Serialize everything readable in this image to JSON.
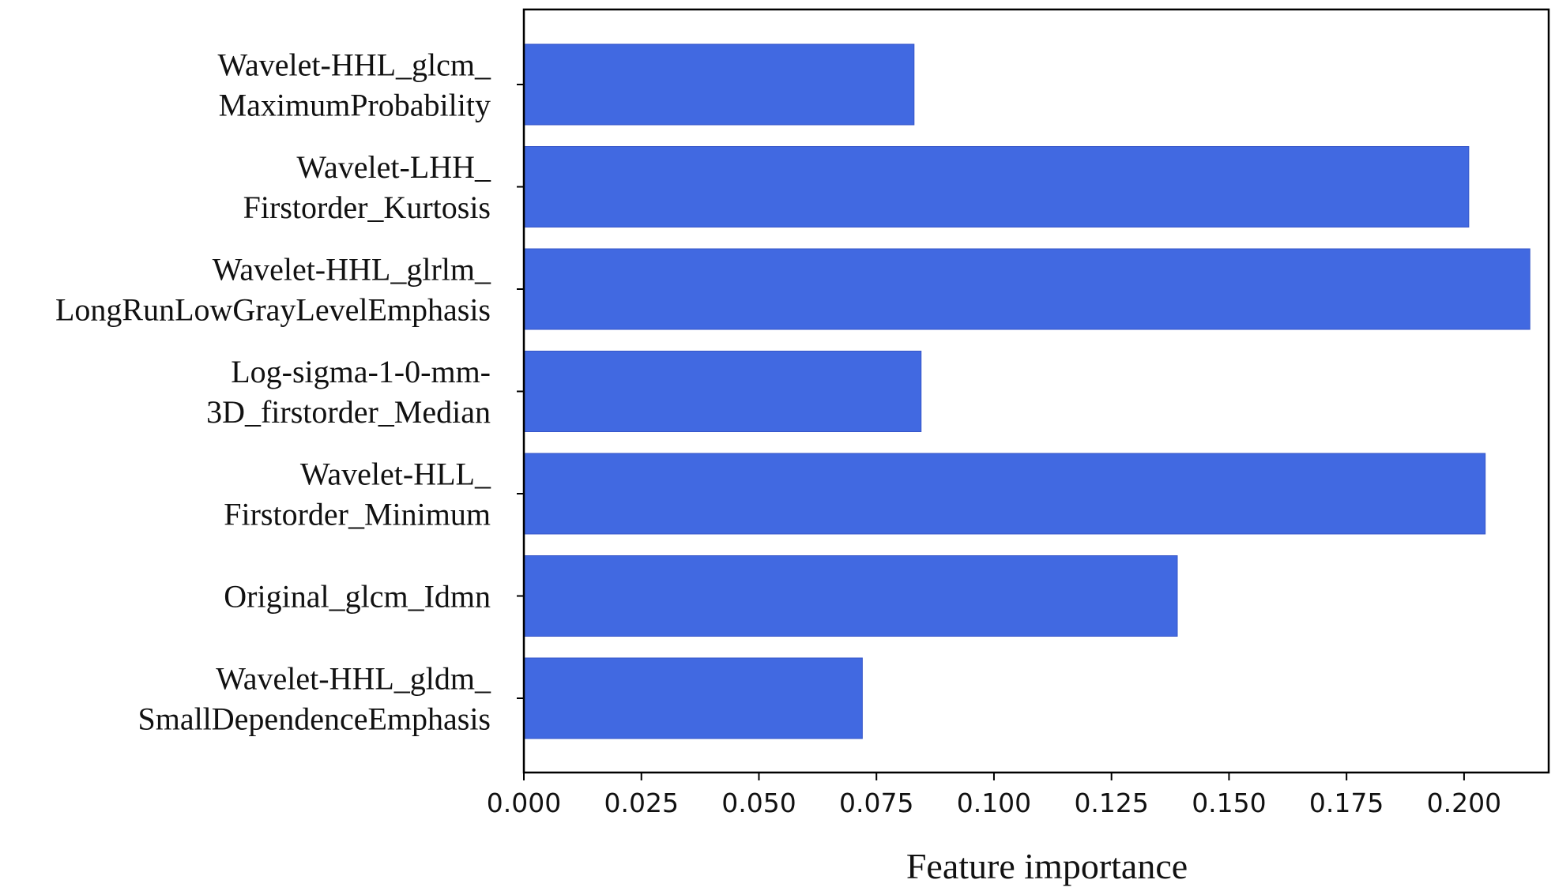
{
  "chart_data": {
    "type": "bar",
    "orientation": "horizontal",
    "categories": [
      [
        "Wavelet-HHL_glcm_",
        "MaximumProbability"
      ],
      [
        "Wavelet-LHH_",
        "Firstorder_Kurtosis"
      ],
      [
        "Wavelet-HHL_glrlm_",
        "LongRunLowGrayLevelEmphasis"
      ],
      [
        "Log-sigma-1-0-mm-",
        "3D_firstorder_Median"
      ],
      [
        "Wavelet-HLL_",
        "Firstorder_Minimum"
      ],
      [
        "Original_glcm_Idmn"
      ],
      [
        "Wavelet-HHL_gldm_",
        "SmallDependenceEmphasis"
      ]
    ],
    "values": [
      0.083,
      0.201,
      0.214,
      0.0845,
      0.2045,
      0.139,
      0.072
    ],
    "xlabel": "Feature importance",
    "ylabel": "",
    "title": "",
    "xlim": [
      0.0,
      0.218
    ],
    "xticks": [
      "0.000",
      "0.025",
      "0.050",
      "0.075",
      "0.100",
      "0.125",
      "0.150",
      "0.175",
      "0.200"
    ],
    "bar_color": "#4169E1",
    "grid": false,
    "legend": "none"
  }
}
